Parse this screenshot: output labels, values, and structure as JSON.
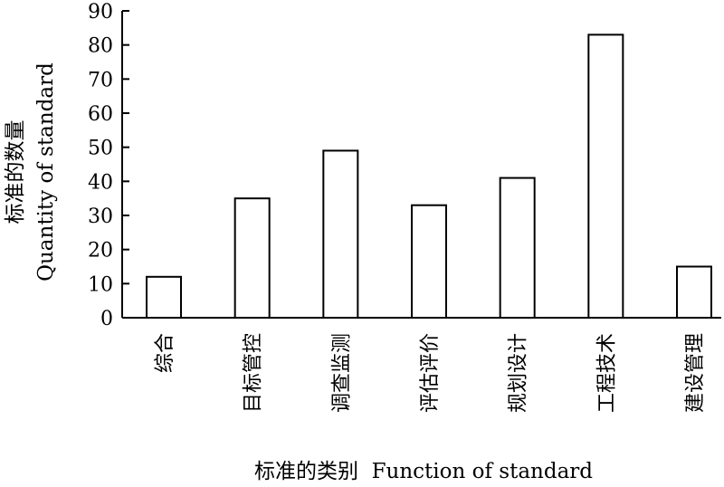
{
  "chart_data": {
    "type": "bar",
    "categories": [
      "综合",
      "目标管控",
      "调查监测",
      "评估评价",
      "规划设计",
      "工程技术",
      "建设管理"
    ],
    "values": [
      12,
      35,
      49,
      33,
      41,
      83,
      15
    ],
    "xlabel": "标准的类别  Function of standard",
    "ylabel_cn": "标准的数量",
    "ylabel_en": "Quantity of standard",
    "ylim": [
      0,
      90
    ],
    "yticks": [
      0,
      10,
      20,
      30,
      40,
      50,
      60,
      70,
      80,
      90
    ],
    "grid": false,
    "bar_fill": "#ffffff",
    "bar_stroke": "#000000"
  }
}
